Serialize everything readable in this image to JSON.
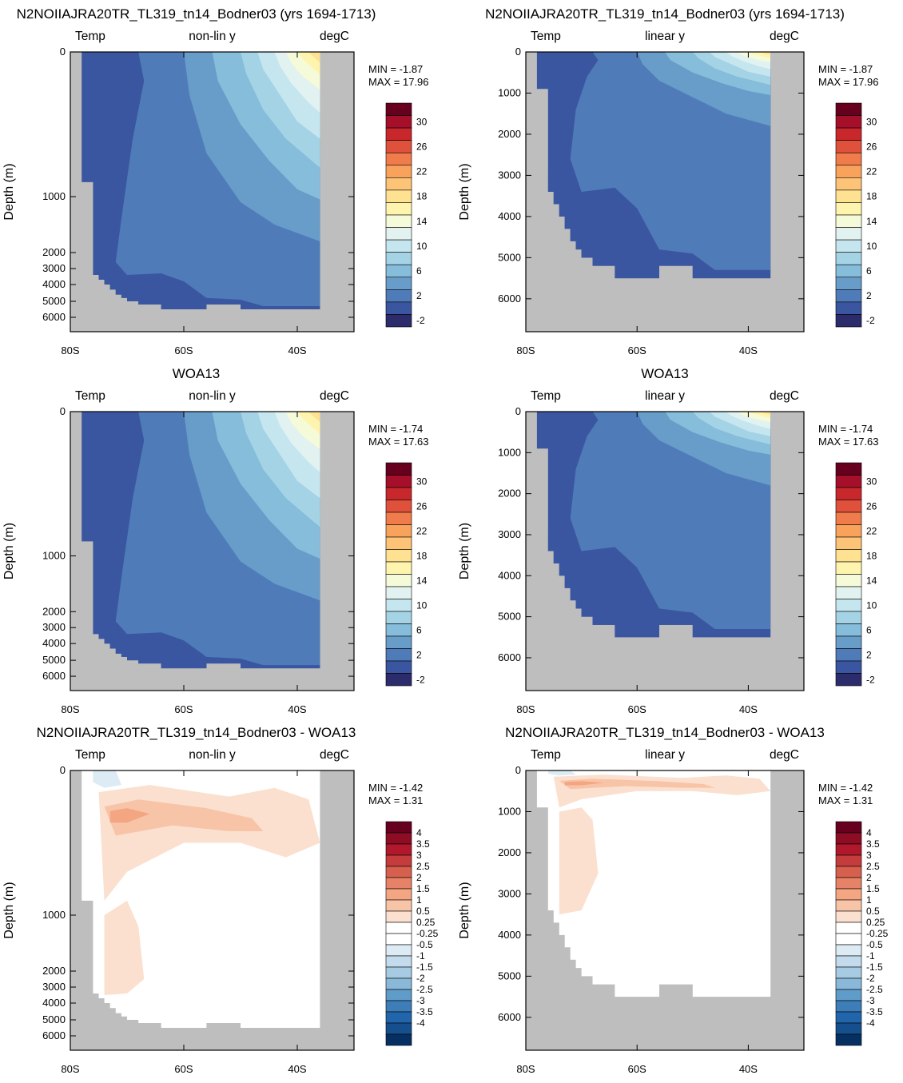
{
  "panels": [
    {
      "title": "N2NOIIAJRA20TR_TL319_tn14_Bodner03 (yrs 1694-1713)",
      "left_label": "Temp",
      "center_label": "non-lin y",
      "right_label": "degC",
      "ylabel": "Depth (m)",
      "min_label": "MIN =  -1.87",
      "max_label": "MAX =  17.96",
      "y_scale": "nonlinear",
      "field": "temp_model",
      "xticks": [
        "80S",
        "60S",
        "40S"
      ],
      "yticks": [
        "0",
        "1000",
        "2000",
        "3000",
        "4000",
        "5000",
        "6000"
      ],
      "colorbar": "temp"
    },
    {
      "title": "N2NOIIAJRA20TR_TL319_tn14_Bodner03 (yrs 1694-1713)",
      "left_label": "Temp",
      "center_label": "linear y",
      "right_label": "degC",
      "ylabel": "Depth (m)",
      "min_label": "MIN =  -1.87",
      "max_label": "MAX =  17.96",
      "y_scale": "linear",
      "field": "temp_model",
      "xticks": [
        "80S",
        "60S",
        "40S"
      ],
      "yticks": [
        "0",
        "1000",
        "2000",
        "3000",
        "4000",
        "5000",
        "6000"
      ],
      "colorbar": "temp"
    },
    {
      "title": "WOA13",
      "left_label": "Temp",
      "center_label": "non-lin y",
      "right_label": "degC",
      "ylabel": "Depth (m)",
      "min_label": "MIN =  -1.74",
      "max_label": "MAX =  17.63",
      "y_scale": "nonlinear",
      "field": "temp_obs",
      "xticks": [
        "80S",
        "60S",
        "40S"
      ],
      "yticks": [
        "0",
        "1000",
        "2000",
        "3000",
        "4000",
        "5000",
        "6000"
      ],
      "colorbar": "temp"
    },
    {
      "title": "WOA13",
      "left_label": "Temp",
      "center_label": "linear y",
      "right_label": "degC",
      "ylabel": "Depth (m)",
      "min_label": "MIN =  -1.74",
      "max_label": "MAX =  17.63",
      "y_scale": "linear",
      "field": "temp_obs",
      "xticks": [
        "80S",
        "60S",
        "40S"
      ],
      "yticks": [
        "0",
        "1000",
        "2000",
        "3000",
        "4000",
        "5000",
        "6000"
      ],
      "colorbar": "temp"
    },
    {
      "title": "N2NOIIAJRA20TR_TL319_tn14_Bodner03 - WOA13",
      "left_label": "Temp",
      "center_label": "non-lin y",
      "right_label": "degC",
      "ylabel": "Depth (m)",
      "min_label": "MIN =  -1.42",
      "max_label": "MAX =   1.31",
      "y_scale": "nonlinear",
      "field": "diff",
      "xticks": [
        "80S",
        "60S",
        "40S"
      ],
      "yticks": [
        "0",
        "1000",
        "2000",
        "3000",
        "4000",
        "5000",
        "6000"
      ],
      "colorbar": "diff"
    },
    {
      "title": "N2NOIIAJRA20TR_TL319_tn14_Bodner03 - WOA13",
      "left_label": "Temp",
      "center_label": "linear y",
      "right_label": "degC",
      "ylabel": "Depth (m)",
      "min_label": "MIN =  -1.42",
      "max_label": "MAX =   1.31",
      "y_scale": "linear",
      "field": "diff",
      "xticks": [
        "80S",
        "60S",
        "40S"
      ],
      "yticks": [
        "0",
        "1000",
        "2000",
        "3000",
        "4000",
        "5000",
        "6000"
      ],
      "colorbar": "diff"
    }
  ],
  "chart_data": [
    {
      "type": "heatmap",
      "description_of_axes": "latitude vs depth section",
      "x_range": [
        "80S",
        "30S"
      ],
      "y_range_m": [
        0,
        6800
      ],
      "colorbars": {
        "temp": {
          "labels": [
            "30",
            "26",
            "22",
            "18",
            "14",
            "10",
            "6",
            "2",
            "-2"
          ],
          "colors": [
            "#67001f",
            "#a50f2a",
            "#c8282c",
            "#e0513c",
            "#f07c4c",
            "#f8a25c",
            "#fdc477",
            "#fee191",
            "#fff4ad",
            "#f5fbd8",
            "#e2f2f1",
            "#c6e6ef",
            "#a5d3e6",
            "#85bdda",
            "#689cc9",
            "#4f7cb9",
            "#3b56a0",
            "#2c2b6b"
          ]
        },
        "diff": {
          "labels": [
            "4",
            "3.5",
            "3",
            "2.5",
            "2",
            "1.5",
            "1",
            "0.5",
            "0.25",
            "-0.25",
            "-0.5",
            "-1",
            "-1.5",
            "-2",
            "-2.5",
            "-3",
            "-3.5",
            "-4"
          ],
          "colors": [
            "#67001f",
            "#8f0c25",
            "#b2182b",
            "#c43c3c",
            "#d6604d",
            "#e58267",
            "#f4a582",
            "#f8c4a8",
            "#fbe0cf",
            "#ffffff",
            "#ffffff",
            "#dcebf4",
            "#c3dbed",
            "#a7cbe2",
            "#8ab8d8",
            "#5f9cc9",
            "#3d7db8",
            "#2166ac",
            "#164f8e",
            "#053061"
          ]
        }
      },
      "fields": {
        "temp_model_min": -1.87,
        "temp_model_max": 17.96,
        "temp_obs_min": -1.74,
        "temp_obs_max": 17.63,
        "diff_min": -1.42,
        "diff_max": 1.31
      },
      "colors": {
        "land": "#bebebe"
      }
    }
  ]
}
